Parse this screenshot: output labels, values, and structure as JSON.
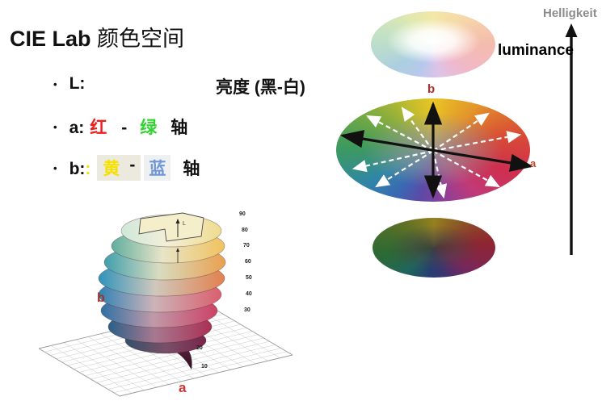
{
  "slide": {
    "title_en": "CIE Lab",
    "title_zh": "颜色空间",
    "bullets": {
      "l": {
        "bullet": "•",
        "key": "L:",
        "desc": "亮度 (黑-白)"
      },
      "a": {
        "bullet": "•",
        "key": "a:",
        "pos": "红",
        "dash": "-",
        "neg": "绿",
        "axis": "轴"
      },
      "b": {
        "bullet": "•",
        "key": "b:",
        "colon": ":",
        "pos": "黄",
        "dash": "-",
        "neg": "蓝",
        "axis": "轴"
      }
    }
  },
  "right_panel": {
    "label_de": "Helligkeit",
    "label_en": "luminance",
    "wheel_b_label": "b",
    "wheel_a_label": "a"
  },
  "plot3d": {
    "b_label": "b",
    "a_label": "a",
    "l_label": "L",
    "levels": [
      "90",
      "80",
      "70",
      "60",
      "50",
      "40",
      "30",
      "20",
      "10"
    ]
  },
  "colors": {
    "red_text": "#e82222",
    "green_text": "#2ed52e",
    "yellow_text": "#f5e000",
    "blue_text": "#6f97d8",
    "highlight_cream": "#eceadf",
    "highlight_gray": "#eef0f1",
    "axis_label_red": "#a83028",
    "helligkeit_gray": "#8c8c8c"
  }
}
